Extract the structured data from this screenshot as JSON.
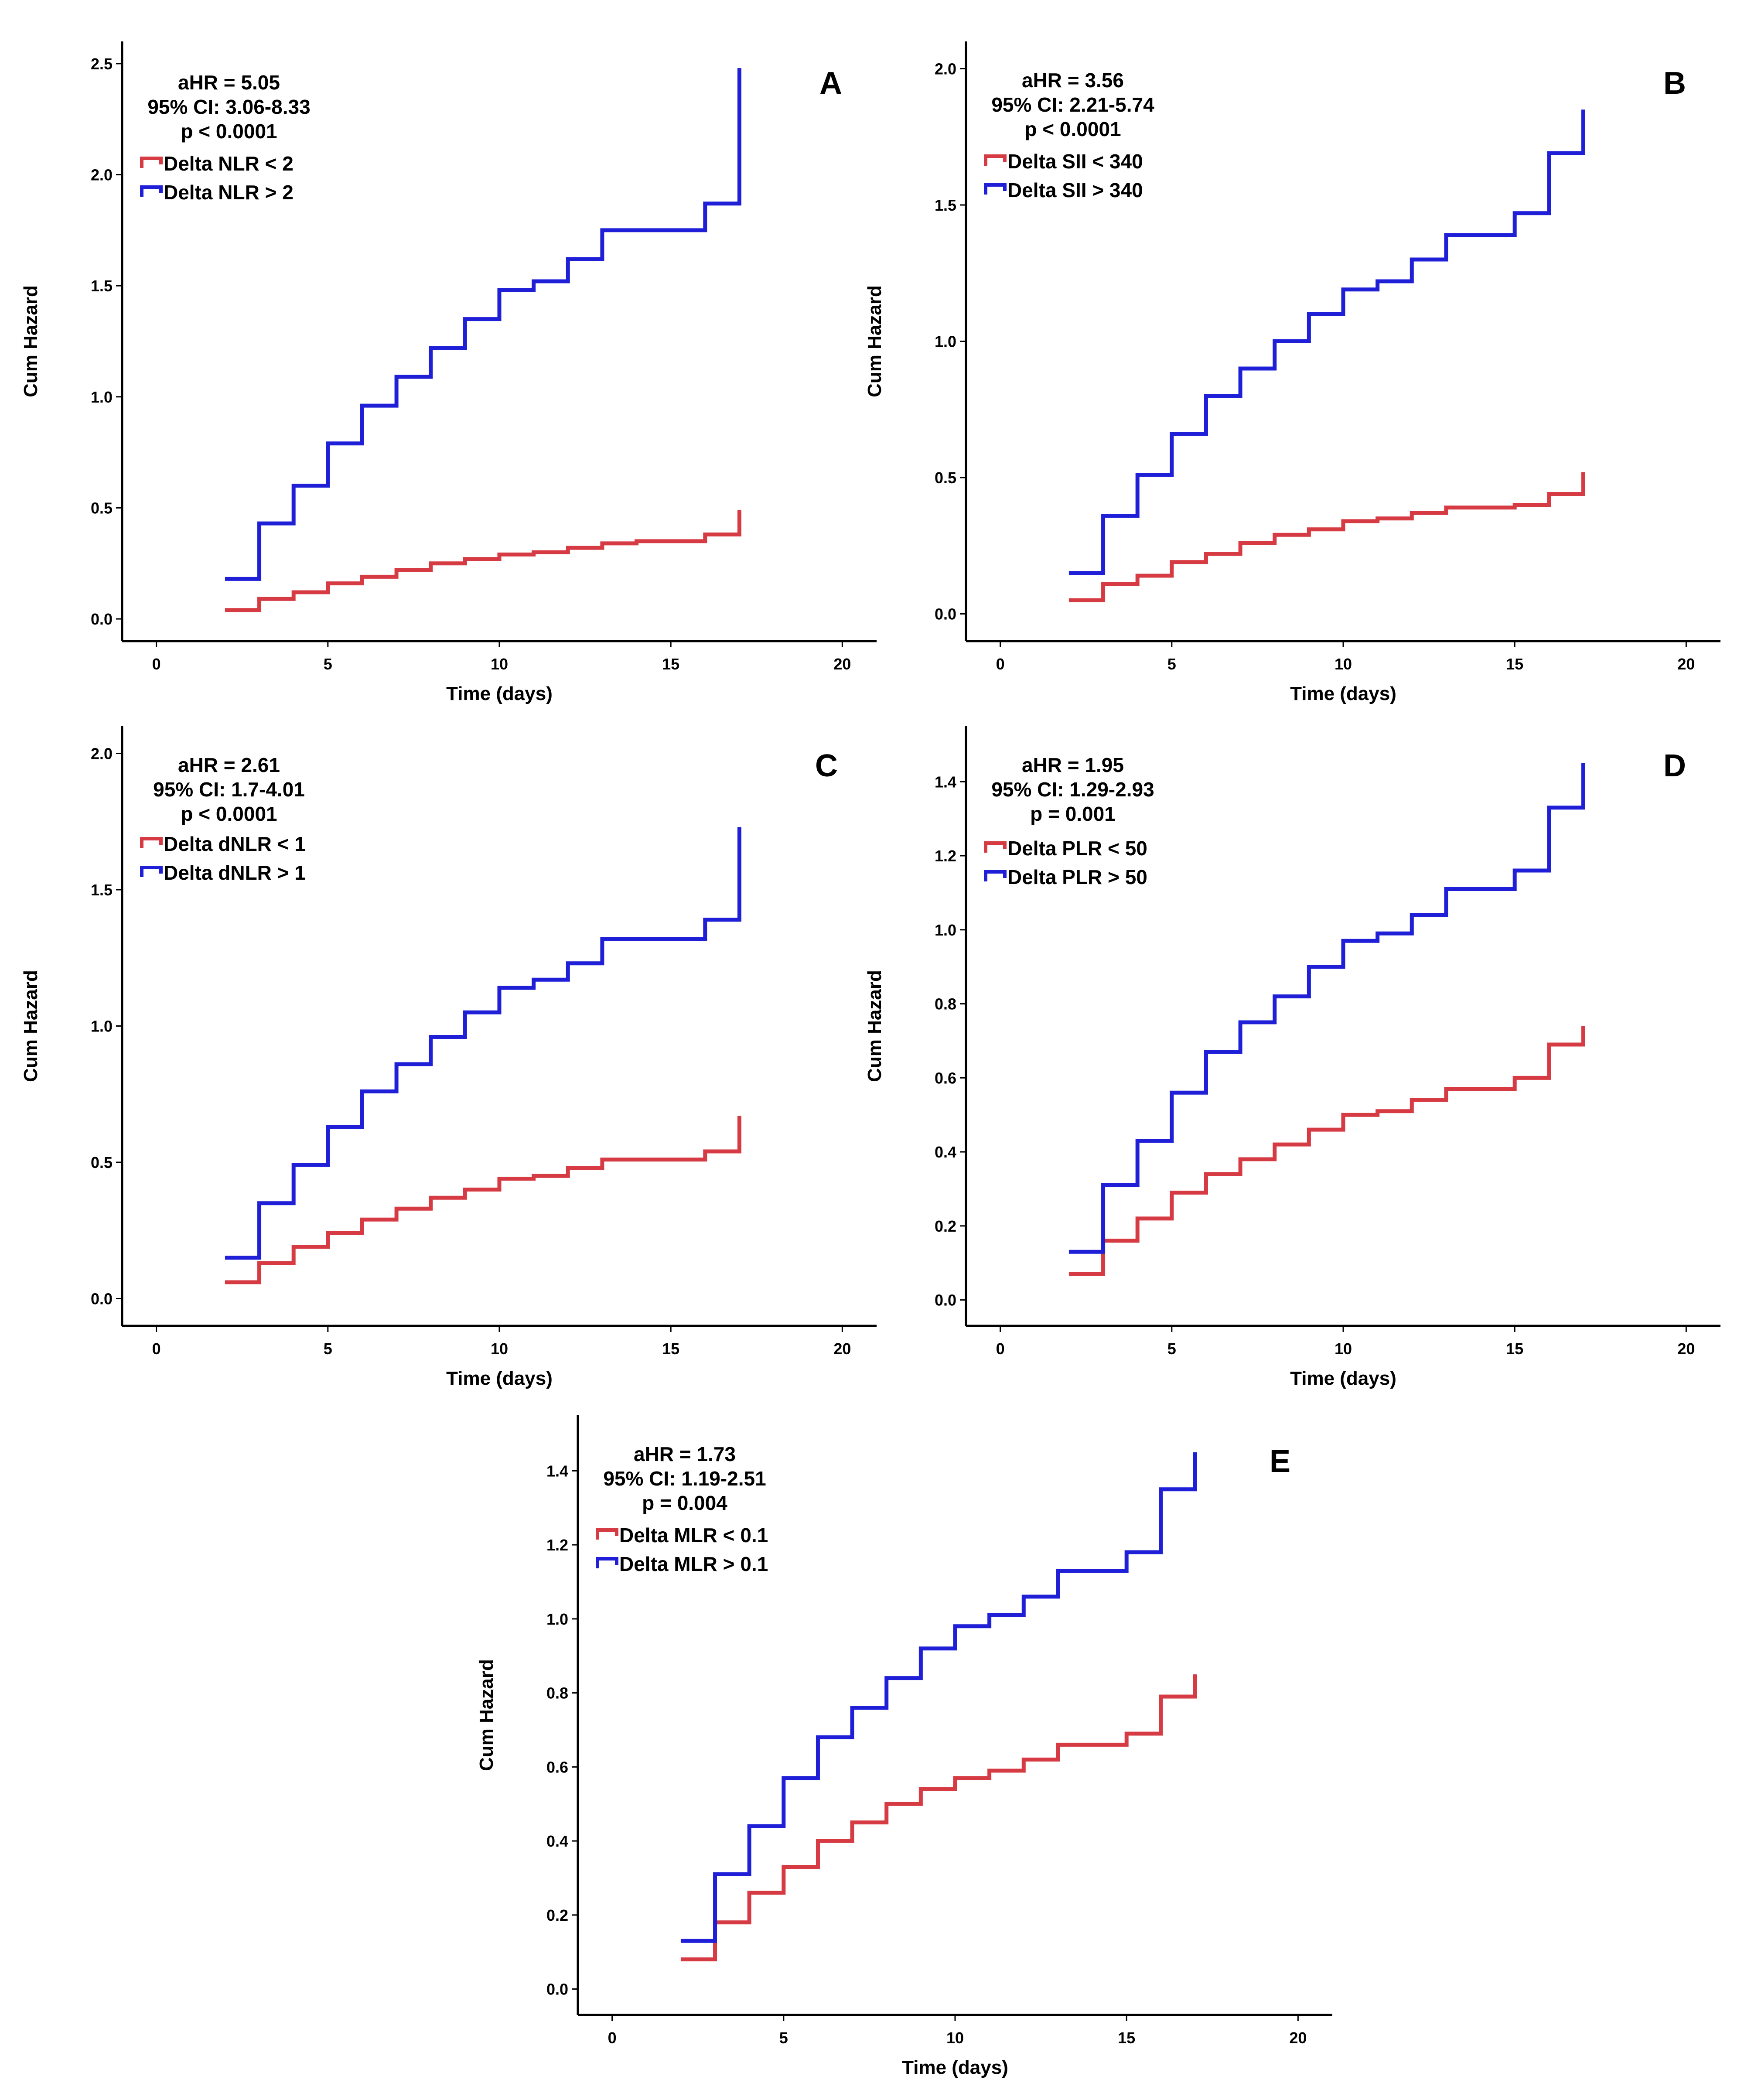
{
  "figure": {
    "description": "Cumulative hazard curves for inflammatory marker deltas"
  },
  "colors": {
    "low": "#D63A43",
    "high": "#1F1FD8",
    "axis": "#000000"
  },
  "chart_data": [
    {
      "panel": "A",
      "type": "line",
      "step": true,
      "xlabel": "Time (days)",
      "ylabel": "Cum Hazard",
      "xlim": [
        -1,
        21
      ],
      "ylim": [
        -0.1,
        2.6
      ],
      "xticks": [
        0,
        5,
        10,
        15,
        20
      ],
      "yticks": [
        0.0,
        0.5,
        1.0,
        1.5,
        2.0,
        2.5
      ],
      "ytick_labels": [
        "0.0",
        "0.5",
        "1.0",
        "1.5",
        "2.0",
        "2.5"
      ],
      "stats": [
        "aHR = 5.05",
        "95% CI: 3.06-8.33",
        "p < 0.0001"
      ],
      "series": [
        {
          "name": "Delta NLR < 2",
          "color": "#D63A43",
          "x": [
            2,
            3,
            4,
            5,
            6,
            7,
            8,
            9,
            10,
            11,
            12,
            13,
            14,
            15,
            16,
            17
          ],
          "y": [
            0.04,
            0.09,
            0.12,
            0.16,
            0.19,
            0.22,
            0.25,
            0.27,
            0.29,
            0.3,
            0.32,
            0.34,
            0.35,
            0.35,
            0.38,
            0.44
          ],
          "end": 0.49
        },
        {
          "name": "Delta NLR > 2",
          "color": "#1F1FD8",
          "x": [
            2,
            3,
            4,
            5,
            6,
            7,
            8,
            9,
            10,
            11,
            12,
            13,
            14,
            15,
            16,
            17
          ],
          "y": [
            0.18,
            0.43,
            0.6,
            0.79,
            0.96,
            1.09,
            1.22,
            1.35,
            1.48,
            1.52,
            1.62,
            1.75,
            1.75,
            1.75,
            1.87,
            2.23
          ],
          "end": 2.48
        }
      ]
    },
    {
      "panel": "B",
      "type": "line",
      "step": true,
      "xlabel": "Time (days)",
      "ylabel": "Cum Hazard",
      "xlim": [
        -1,
        21
      ],
      "ylim": [
        -0.1,
        2.1
      ],
      "xticks": [
        0,
        5,
        10,
        15,
        20
      ],
      "yticks": [
        0.0,
        0.5,
        1.0,
        1.5,
        2.0
      ],
      "ytick_labels": [
        "0.0",
        "0.5",
        "1.0",
        "1.5",
        "2.0"
      ],
      "stats": [
        "aHR = 3.56",
        "95% CI: 2.21-5.74",
        "p < 0.0001"
      ],
      "series": [
        {
          "name": "Delta SII < 340",
          "color": "#D63A43",
          "x": [
            2,
            3,
            4,
            5,
            6,
            7,
            8,
            9,
            10,
            11,
            12,
            13,
            14,
            15,
            16,
            17
          ],
          "y": [
            0.05,
            0.11,
            0.14,
            0.19,
            0.22,
            0.26,
            0.29,
            0.31,
            0.34,
            0.35,
            0.37,
            0.39,
            0.39,
            0.4,
            0.44,
            0.48
          ],
          "end": 0.52
        },
        {
          "name": "Delta SII > 340",
          "color": "#1F1FD8",
          "x": [
            2,
            3,
            4,
            5,
            6,
            7,
            8,
            9,
            10,
            11,
            12,
            13,
            14,
            15,
            16,
            17
          ],
          "y": [
            0.15,
            0.36,
            0.51,
            0.66,
            0.8,
            0.9,
            1.0,
            1.1,
            1.19,
            1.22,
            1.3,
            1.39,
            1.39,
            1.47,
            1.69,
            1.69
          ],
          "end": 1.85
        }
      ]
    },
    {
      "panel": "C",
      "type": "line",
      "step": true,
      "xlabel": "Time (days)",
      "ylabel": "Cum Hazard",
      "xlim": [
        -1,
        21
      ],
      "ylim": [
        -0.1,
        2.1
      ],
      "xticks": [
        0,
        5,
        10,
        15,
        20
      ],
      "yticks": [
        0.0,
        0.5,
        1.0,
        1.5,
        2.0
      ],
      "ytick_labels": [
        "0.0",
        "0.5",
        "1.0",
        "1.5",
        "2.0"
      ],
      "stats": [
        "aHR = 2.61",
        "95% CI: 1.7-4.01",
        "p < 0.0001"
      ],
      "series": [
        {
          "name": "Delta dNLR < 1",
          "color": "#D63A43",
          "x": [
            2,
            3,
            4,
            5,
            6,
            7,
            8,
            9,
            10,
            11,
            12,
            13,
            14,
            15,
            16,
            17
          ],
          "y": [
            0.06,
            0.13,
            0.19,
            0.24,
            0.29,
            0.33,
            0.37,
            0.4,
            0.44,
            0.45,
            0.48,
            0.51,
            0.51,
            0.51,
            0.54,
            0.61
          ],
          "end": 0.67
        },
        {
          "name": "Delta dNLR > 1",
          "color": "#1F1FD8",
          "x": [
            2,
            3,
            4,
            5,
            6,
            7,
            8,
            9,
            10,
            11,
            12,
            13,
            14,
            15,
            16,
            17
          ],
          "y": [
            0.15,
            0.35,
            0.49,
            0.63,
            0.76,
            0.86,
            0.96,
            1.05,
            1.14,
            1.17,
            1.23,
            1.32,
            1.32,
            1.32,
            1.39,
            1.6
          ],
          "end": 1.73
        }
      ]
    },
    {
      "panel": "D",
      "type": "line",
      "step": true,
      "xlabel": "Time (days)",
      "ylabel": "Cum Hazard",
      "xlim": [
        -1,
        21
      ],
      "ylim": [
        -0.07,
        1.55
      ],
      "xticks": [
        0,
        5,
        10,
        15,
        20
      ],
      "yticks": [
        0.0,
        0.2,
        0.4,
        0.6,
        0.8,
        1.0,
        1.2,
        1.4
      ],
      "ytick_labels": [
        "0.0",
        "0.2",
        "0.4",
        "0.6",
        "0.8",
        "1.0",
        "1.2",
        "1.4"
      ],
      "stats": [
        "aHR = 1.95",
        "95% CI: 1.29-2.93",
        "p = 0.001"
      ],
      "series": [
        {
          "name": "Delta PLR < 50",
          "color": "#D63A43",
          "x": [
            2,
            3,
            4,
            5,
            6,
            7,
            8,
            9,
            10,
            11,
            12,
            13,
            14,
            15,
            16,
            17
          ],
          "y": [
            0.07,
            0.16,
            0.22,
            0.29,
            0.34,
            0.38,
            0.42,
            0.46,
            0.5,
            0.51,
            0.54,
            0.57,
            0.57,
            0.6,
            0.69,
            0.69
          ],
          "end": 0.74
        },
        {
          "name": "Delta PLR > 50",
          "color": "#1F1FD8",
          "x": [
            2,
            3,
            4,
            5,
            6,
            7,
            8,
            9,
            10,
            11,
            12,
            13,
            14,
            15,
            16,
            17
          ],
          "y": [
            0.13,
            0.31,
            0.43,
            0.56,
            0.67,
            0.75,
            0.82,
            0.9,
            0.97,
            0.99,
            1.04,
            1.11,
            1.11,
            1.16,
            1.33,
            1.33
          ],
          "end": 1.45
        }
      ]
    },
    {
      "panel": "E",
      "type": "line",
      "step": true,
      "xlabel": "Time (days)",
      "ylabel": "Cum Hazard",
      "xlim": [
        -1,
        21
      ],
      "ylim": [
        -0.07,
        1.55
      ],
      "xticks": [
        0,
        5,
        10,
        15,
        20
      ],
      "yticks": [
        0.0,
        0.2,
        0.4,
        0.6,
        0.8,
        1.0,
        1.2,
        1.4
      ],
      "ytick_labels": [
        "0.0",
        "0.2",
        "0.4",
        "0.6",
        "0.8",
        "1.0",
        "1.2",
        "1.4"
      ],
      "stats": [
        "aHR = 1.73",
        "95% CI: 1.19-2.51",
        "p = 0.004"
      ],
      "series": [
        {
          "name": "Delta MLR < 0.1",
          "color": "#D63A43",
          "x": [
            2,
            3,
            4,
            5,
            6,
            7,
            8,
            9,
            10,
            11,
            12,
            13,
            14,
            15,
            16,
            17
          ],
          "y": [
            0.08,
            0.18,
            0.26,
            0.33,
            0.4,
            0.45,
            0.5,
            0.54,
            0.57,
            0.59,
            0.62,
            0.66,
            0.66,
            0.69,
            0.79,
            0.79
          ],
          "end": 0.85
        },
        {
          "name": "Delta MLR > 0.1",
          "color": "#1F1FD8",
          "x": [
            2,
            3,
            4,
            5,
            6,
            7,
            8,
            9,
            10,
            11,
            12,
            13,
            14,
            15,
            16,
            17
          ],
          "y": [
            0.13,
            0.31,
            0.44,
            0.57,
            0.68,
            0.76,
            0.84,
            0.92,
            0.98,
            1.01,
            1.06,
            1.13,
            1.13,
            1.18,
            1.35,
            1.35
          ],
          "end": 1.45
        }
      ]
    }
  ]
}
